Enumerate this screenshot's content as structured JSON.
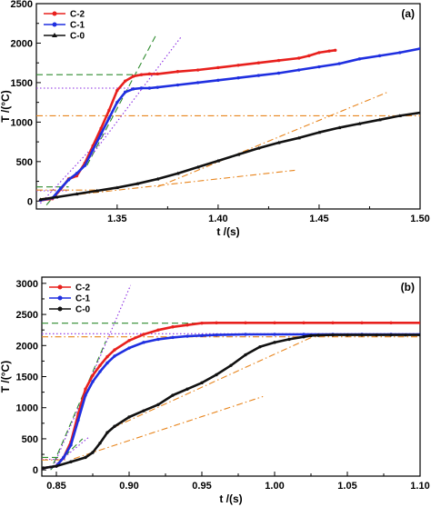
{
  "chart_data": [
    {
      "type": "line",
      "panel_label": "(a)",
      "xlabel": "t /(s)",
      "ylabel": "T /(°C)",
      "xlim": [
        1.31,
        1.5
      ],
      "ylim": [
        -100,
        2500
      ],
      "x_ticks": [
        "1.35",
        "1.40",
        "1.45",
        "1.50"
      ],
      "y_ticks": [
        "0",
        "500",
        "1000",
        "1500",
        "2000",
        "2500"
      ],
      "legend_position": "top-left",
      "series": [
        {
          "name": "C-2",
          "color": "#e8201d",
          "marker": "circle",
          "x": [
            1.312,
            1.318,
            1.322,
            1.326,
            1.33,
            1.334,
            1.338,
            1.342,
            1.346,
            1.35,
            1.354,
            1.358,
            1.362,
            1.366,
            1.37,
            1.38,
            1.39,
            1.4,
            1.41,
            1.42,
            1.43,
            1.44,
            1.445,
            1.45,
            1.455,
            1.458
          ],
          "y": [
            10,
            30,
            150,
            280,
            320,
            480,
            700,
            920,
            1150,
            1400,
            1520,
            1580,
            1600,
            1610,
            1610,
            1640,
            1660,
            1690,
            1720,
            1750,
            1780,
            1810,
            1840,
            1880,
            1900,
            1910
          ]
        },
        {
          "name": "C-1",
          "color": "#1f2fe0",
          "marker": "circle",
          "x": [
            1.312,
            1.318,
            1.322,
            1.326,
            1.33,
            1.334,
            1.338,
            1.342,
            1.346,
            1.35,
            1.354,
            1.358,
            1.362,
            1.366,
            1.37,
            1.38,
            1.39,
            1.4,
            1.41,
            1.42,
            1.43,
            1.44,
            1.45,
            1.46,
            1.47,
            1.48,
            1.49,
            1.5
          ],
          "y": [
            10,
            40,
            160,
            270,
            350,
            450,
            650,
            850,
            1050,
            1250,
            1380,
            1420,
            1430,
            1430,
            1440,
            1470,
            1500,
            1530,
            1560,
            1590,
            1620,
            1660,
            1700,
            1740,
            1800,
            1840,
            1880,
            1930
          ]
        },
        {
          "name": "C-0",
          "color": "#111111",
          "marker": "triangle",
          "x": [
            1.312,
            1.32,
            1.33,
            1.34,
            1.35,
            1.36,
            1.37,
            1.38,
            1.39,
            1.4,
            1.41,
            1.42,
            1.43,
            1.44,
            1.45,
            1.46,
            1.47,
            1.48,
            1.49,
            1.5
          ],
          "y": [
            20,
            50,
            90,
            130,
            170,
            220,
            280,
            350,
            430,
            510,
            590,
            670,
            740,
            800,
            870,
            930,
            980,
            1030,
            1080,
            1120
          ]
        }
      ],
      "annotations": [
        {
          "kind": "hline",
          "color": "#2e8b2e",
          "style": "dash",
          "y": 1600,
          "x": [
            1.31,
            1.366
          ]
        },
        {
          "kind": "hline",
          "color": "#8a2be2",
          "style": "dot",
          "y": 1430,
          "x": [
            1.31,
            1.363
          ]
        },
        {
          "kind": "hline",
          "color": "#e8851d",
          "style": "dashdot",
          "y": 1080,
          "x": [
            1.31,
            1.5
          ]
        },
        {
          "kind": "hline",
          "color": "#2e8b2e",
          "style": "dash",
          "y": 180,
          "x": [
            1.31,
            1.326
          ]
        },
        {
          "kind": "hline",
          "color": "#8a2be2",
          "style": "dot",
          "y": 130,
          "x": [
            1.31,
            1.326
          ]
        },
        {
          "kind": "hline",
          "color": "#e8851d",
          "style": "dashdot",
          "y": 140,
          "x": [
            1.31,
            1.345
          ]
        },
        {
          "kind": "segment",
          "color": "#2e8b2e",
          "style": "dash",
          "x": [
            1.315,
            1.327
          ],
          "y": [
            -50,
            320
          ]
        },
        {
          "kind": "segment",
          "color": "#2e8b2e",
          "style": "dash",
          "x": [
            1.335,
            1.369
          ],
          "y": [
            450,
            2090
          ]
        },
        {
          "kind": "segment",
          "color": "#8a2be2",
          "style": "dot",
          "x": [
            1.312,
            1.345
          ],
          "y": [
            -30,
            880
          ]
        },
        {
          "kind": "segment",
          "color": "#8a2be2",
          "style": "dot",
          "x": [
            1.33,
            1.382
          ],
          "y": [
            330,
            2090
          ]
        },
        {
          "kind": "segment",
          "color": "#e8851d",
          "style": "dashdot",
          "x": [
            1.312,
            1.438
          ],
          "y": [
            30,
            390
          ]
        },
        {
          "kind": "segment",
          "color": "#e8851d",
          "style": "dashdot",
          "x": [
            1.37,
            1.484
          ],
          "y": [
            180,
            1380
          ]
        }
      ]
    },
    {
      "type": "line",
      "panel_label": "(b)",
      "xlabel": "t /(s)",
      "ylabel": "T /(°C)",
      "xlim": [
        0.84,
        1.1
      ],
      "ylim": [
        -100,
        3100
      ],
      "x_ticks": [
        "0.85",
        "0.90",
        "0.95",
        "1.00",
        "1.05",
        "1.10"
      ],
      "y_ticks": [
        "0",
        "500",
        "1000",
        "1500",
        "2000",
        "2500",
        "3000"
      ],
      "legend_position": "top-left",
      "series": [
        {
          "name": "C-2",
          "color": "#e8201d",
          "marker": "circle",
          "x": [
            0.841,
            0.85,
            0.855,
            0.86,
            0.865,
            0.87,
            0.875,
            0.88,
            0.885,
            0.89,
            0.9,
            0.91,
            0.92,
            0.93,
            0.94,
            0.95,
            0.96,
            0.98,
            1.0,
            1.02,
            1.04,
            1.06,
            1.08,
            1.1
          ],
          "y": [
            30,
            60,
            200,
            450,
            900,
            1300,
            1520,
            1680,
            1820,
            1930,
            2080,
            2180,
            2250,
            2300,
            2330,
            2360,
            2365,
            2365,
            2365,
            2365,
            2365,
            2365,
            2365,
            2365
          ]
        },
        {
          "name": "C-1",
          "color": "#1f2fe0",
          "marker": "circle",
          "x": [
            0.841,
            0.85,
            0.855,
            0.86,
            0.865,
            0.87,
            0.875,
            0.88,
            0.885,
            0.89,
            0.9,
            0.91,
            0.92,
            0.93,
            0.94,
            0.95,
            0.96,
            0.98,
            1.0,
            1.02,
            1.04,
            1.06,
            1.08,
            1.1
          ],
          "y": [
            30,
            60,
            200,
            400,
            800,
            1200,
            1420,
            1580,
            1720,
            1830,
            1960,
            2050,
            2100,
            2130,
            2150,
            2160,
            2170,
            2180,
            2180,
            2180,
            2180,
            2180,
            2180,
            2180
          ]
        },
        {
          "name": "C-0",
          "color": "#111111",
          "marker": "circle",
          "x": [
            0.841,
            0.85,
            0.86,
            0.87,
            0.875,
            0.88,
            0.885,
            0.89,
            0.9,
            0.91,
            0.92,
            0.93,
            0.94,
            0.95,
            0.96,
            0.97,
            0.98,
            0.99,
            1.0,
            1.01,
            1.02,
            1.025,
            1.03,
            1.04,
            1.05,
            1.06,
            1.07,
            1.08,
            1.09,
            1.1
          ],
          "y": [
            30,
            60,
            130,
            200,
            280,
            430,
            600,
            700,
            850,
            950,
            1050,
            1200,
            1300,
            1400,
            1530,
            1680,
            1850,
            1980,
            2050,
            2100,
            2140,
            2160,
            2165,
            2170,
            2170,
            2170,
            2170,
            2170,
            2170,
            2170
          ]
        }
      ],
      "annotations": [
        {
          "kind": "hline",
          "color": "#2e8b2e",
          "style": "dash",
          "y": 2360,
          "x": [
            0.84,
            0.955
          ]
        },
        {
          "kind": "hline",
          "color": "#8a2be2",
          "style": "dot",
          "y": 2190,
          "x": [
            0.84,
            1.1
          ]
        },
        {
          "kind": "hline",
          "color": "#e8851d",
          "style": "dashdot",
          "y": 2140,
          "x": [
            0.84,
            1.1
          ]
        },
        {
          "kind": "hline",
          "color": "#2e8b2e",
          "style": "dash",
          "y": 200,
          "x": [
            0.84,
            0.856
          ]
        },
        {
          "kind": "hline",
          "color": "#8a2be2",
          "style": "dot",
          "y": 170,
          "x": [
            0.84,
            0.856
          ]
        },
        {
          "kind": "hline",
          "color": "#e8851d",
          "style": "dashdot",
          "y": 160,
          "x": [
            0.84,
            0.856
          ]
        },
        {
          "kind": "segment",
          "color": "#2e8b2e",
          "style": "dash",
          "x": [
            0.848,
            0.884
          ],
          "y": [
            100,
            2070
          ]
        },
        {
          "kind": "segment",
          "color": "#8a2be2",
          "style": "dot",
          "x": [
            0.848,
            0.901
          ],
          "y": [
            60,
            2970
          ]
        },
        {
          "kind": "segment",
          "color": "#2e8b2e",
          "style": "dash",
          "x": [
            0.846,
            0.868
          ],
          "y": [
            0,
            500
          ]
        },
        {
          "kind": "segment",
          "color": "#8a2be2",
          "style": "dot",
          "x": [
            0.846,
            0.872
          ],
          "y": [
            20,
            520
          ]
        },
        {
          "kind": "segment",
          "color": "#e8851d",
          "style": "dashdot",
          "x": [
            0.862,
            0.992
          ],
          "y": [
            180,
            1180
          ]
        },
        {
          "kind": "segment",
          "color": "#e8851d",
          "style": "dashdot",
          "x": [
            0.889,
            1.03
          ],
          "y": [
            680,
            2180
          ]
        }
      ]
    }
  ]
}
